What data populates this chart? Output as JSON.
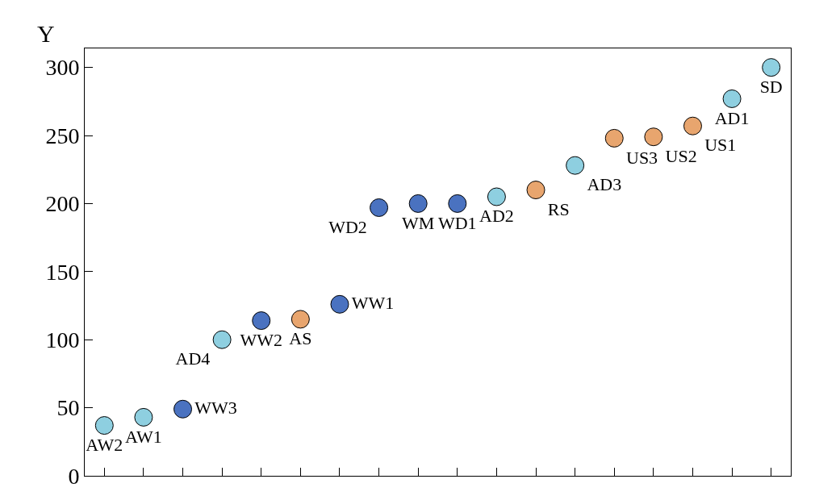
{
  "chart_data": {
    "type": "scatter",
    "ylabel": "Y",
    "ylim": [
      0,
      314
    ],
    "yticks": [
      0,
      50,
      100,
      150,
      200,
      250,
      300
    ],
    "grid": false,
    "legend": false,
    "marker": "circle",
    "categories": [
      null,
      null,
      null,
      null,
      null,
      null,
      null,
      null,
      null,
      null,
      null,
      null,
      null,
      null,
      null,
      null,
      null,
      null
    ],
    "series": [
      {
        "name": "AW2",
        "color": "#8ecfe0",
        "values": [
          37,
          null,
          null,
          null,
          null,
          null,
          null,
          null,
          null,
          null,
          null,
          null,
          null,
          null,
          null,
          null,
          null,
          null
        ]
      },
      {
        "name": "AW1",
        "color": "#8ecfe0",
        "values": [
          null,
          43,
          null,
          null,
          null,
          null,
          null,
          null,
          null,
          null,
          null,
          null,
          null,
          null,
          null,
          null,
          null,
          null
        ]
      },
      {
        "name": "WW3",
        "color": "#4a72c0",
        "values": [
          null,
          null,
          49,
          null,
          null,
          null,
          null,
          null,
          null,
          null,
          null,
          null,
          null,
          null,
          null,
          null,
          null,
          null
        ]
      },
      {
        "name": "AD4",
        "color": "#8ecfe0",
        "values": [
          null,
          null,
          null,
          100,
          null,
          null,
          null,
          null,
          null,
          null,
          null,
          null,
          null,
          null,
          null,
          null,
          null,
          null
        ]
      },
      {
        "name": "WW2",
        "color": "#4a72c0",
        "values": [
          null,
          null,
          null,
          null,
          114,
          null,
          null,
          null,
          null,
          null,
          null,
          null,
          null,
          null,
          null,
          null,
          null,
          null
        ]
      },
      {
        "name": "AS",
        "color": "#e8a56e",
        "values": [
          null,
          null,
          null,
          null,
          null,
          115,
          null,
          null,
          null,
          null,
          null,
          null,
          null,
          null,
          null,
          null,
          null,
          null
        ]
      },
      {
        "name": "WW1",
        "color": "#4a72c0",
        "values": [
          null,
          null,
          null,
          null,
          null,
          null,
          126,
          null,
          null,
          null,
          null,
          null,
          null,
          null,
          null,
          null,
          null,
          null
        ]
      },
      {
        "name": "WD2",
        "color": "#4a72c0",
        "values": [
          null,
          null,
          null,
          null,
          null,
          null,
          null,
          197,
          null,
          null,
          null,
          null,
          null,
          null,
          null,
          null,
          null,
          null
        ]
      },
      {
        "name": "WM",
        "color": "#4a72c0",
        "values": [
          null,
          null,
          null,
          null,
          null,
          null,
          null,
          null,
          200,
          null,
          null,
          null,
          null,
          null,
          null,
          null,
          null,
          null
        ]
      },
      {
        "name": "WD1",
        "color": "#4a72c0",
        "values": [
          null,
          null,
          null,
          null,
          null,
          null,
          null,
          null,
          null,
          200,
          null,
          null,
          null,
          null,
          null,
          null,
          null,
          null
        ]
      },
      {
        "name": "AD2",
        "color": "#8ecfe0",
        "values": [
          null,
          null,
          null,
          null,
          null,
          null,
          null,
          null,
          null,
          null,
          205,
          null,
          null,
          null,
          null,
          null,
          null,
          null
        ]
      },
      {
        "name": "RS",
        "color": "#e8a56e",
        "values": [
          null,
          null,
          null,
          null,
          null,
          null,
          null,
          null,
          null,
          null,
          null,
          210,
          null,
          null,
          null,
          null,
          null,
          null
        ]
      },
      {
        "name": "AD3",
        "color": "#8ecfe0",
        "values": [
          null,
          null,
          null,
          null,
          null,
          null,
          null,
          null,
          null,
          null,
          null,
          null,
          228,
          null,
          null,
          null,
          null,
          null
        ]
      },
      {
        "name": "US3",
        "color": "#e8a56e",
        "values": [
          null,
          null,
          null,
          null,
          null,
          null,
          null,
          null,
          null,
          null,
          null,
          null,
          null,
          248,
          null,
          null,
          null,
          null
        ]
      },
      {
        "name": "US2",
        "color": "#e8a56e",
        "values": [
          null,
          null,
          null,
          null,
          null,
          null,
          null,
          null,
          null,
          null,
          null,
          null,
          null,
          null,
          249,
          null,
          null,
          null
        ]
      },
      {
        "name": "US1",
        "color": "#e8a56e",
        "values": [
          null,
          null,
          null,
          null,
          null,
          null,
          null,
          null,
          null,
          null,
          null,
          null,
          null,
          null,
          null,
          257,
          null,
          null
        ]
      },
      {
        "name": "AD1",
        "color": "#8ecfe0",
        "values": [
          null,
          null,
          null,
          null,
          null,
          null,
          null,
          null,
          null,
          null,
          null,
          null,
          null,
          null,
          null,
          null,
          277,
          null
        ]
      },
      {
        "name": "SD",
        "color": "#8ecfe0",
        "values": [
          null,
          null,
          null,
          null,
          null,
          null,
          null,
          null,
          null,
          null,
          null,
          null,
          null,
          null,
          null,
          null,
          null,
          300
        ]
      }
    ]
  }
}
